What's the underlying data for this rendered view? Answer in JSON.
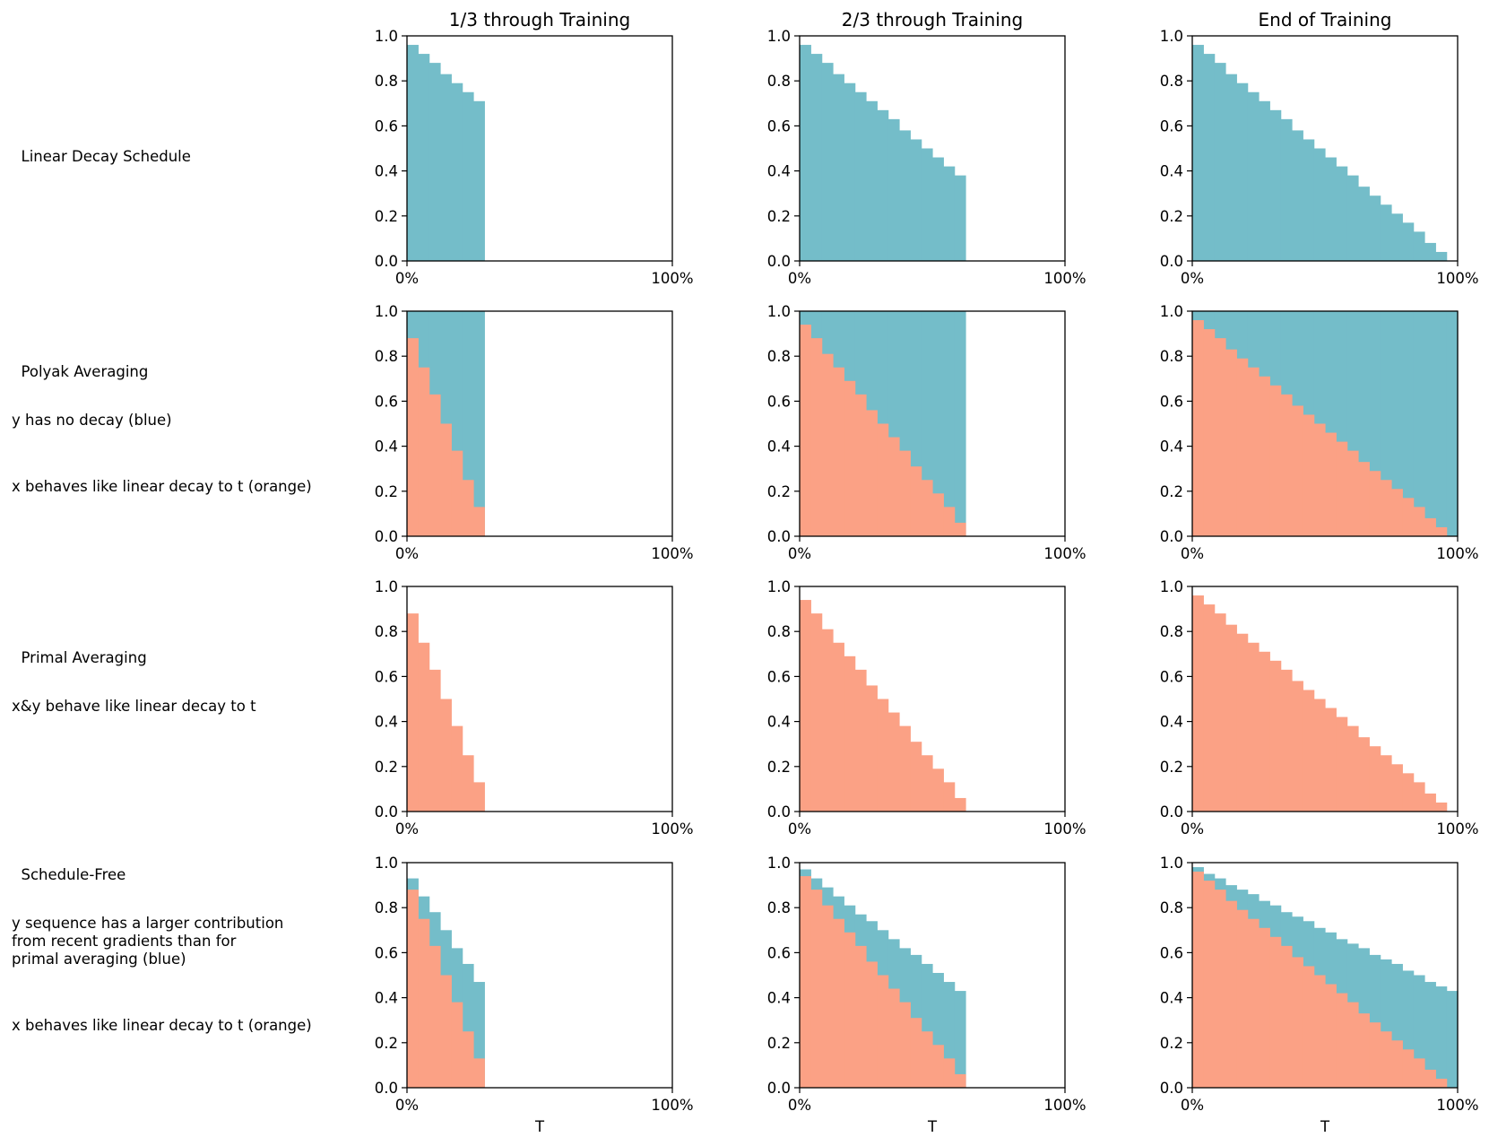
{
  "colors": {
    "blue": "#74bdc9",
    "orange": "#fba185",
    "axis": "#000000"
  },
  "column_titles": [
    "1/3 through Training",
    "2/3 through Training",
    "End of Training"
  ],
  "rows": [
    {
      "title": "Linear Decay Schedule",
      "notes": []
    },
    {
      "title": "Polyak Averaging",
      "notes": [
        "y has no decay (blue)",
        "x behaves like linear decay to t (orange)"
      ]
    },
    {
      "title": "Primal Averaging",
      "notes": [
        "x&y behave like linear decay to t"
      ]
    },
    {
      "title": "Schedule-Free",
      "notes": [
        "y sequence has a larger contribution\nfrom recent gradients than for\nprimal averaging (blue)",
        "x behaves like linear decay to t (orange)"
      ]
    }
  ],
  "axes": {
    "x_ticks": [
      "0%",
      "100%"
    ],
    "y_ticks": [
      "0.0",
      "0.2",
      "0.4",
      "0.6",
      "0.8",
      "1.0"
    ],
    "xlabel": "T"
  },
  "chart_data": [
    {
      "type": "bar",
      "row": "Linear Decay Schedule",
      "col": "1/3 through Training",
      "ylim": [
        0,
        1
      ],
      "n_total": 24,
      "series": [
        {
          "name": "linear decay",
          "color": "blue",
          "values": [
            0.96,
            0.92,
            0.88,
            0.83,
            0.79,
            0.75,
            0.71
          ]
        }
      ]
    },
    {
      "type": "bar",
      "row": "Linear Decay Schedule",
      "col": "2/3 through Training",
      "ylim": [
        0,
        1
      ],
      "n_total": 24,
      "series": [
        {
          "name": "linear decay",
          "color": "blue",
          "values": [
            0.96,
            0.92,
            0.88,
            0.83,
            0.79,
            0.75,
            0.71,
            0.67,
            0.63,
            0.58,
            0.54,
            0.5,
            0.46,
            0.42,
            0.38
          ]
        }
      ]
    },
    {
      "type": "bar",
      "row": "Linear Decay Schedule",
      "col": "End of Training",
      "ylim": [
        0,
        1
      ],
      "n_total": 24,
      "series": [
        {
          "name": "linear decay",
          "color": "blue",
          "values": [
            0.96,
            0.92,
            0.88,
            0.83,
            0.79,
            0.75,
            0.71,
            0.67,
            0.63,
            0.58,
            0.54,
            0.5,
            0.46,
            0.42,
            0.38,
            0.33,
            0.29,
            0.25,
            0.21,
            0.17,
            0.13,
            0.08,
            0.04
          ]
        }
      ]
    },
    {
      "type": "bar",
      "row": "Polyak Averaging",
      "col": "1/3 through Training",
      "ylim": [
        0,
        1
      ],
      "n_total": 24,
      "series": [
        {
          "name": "y",
          "color": "blue",
          "values": [
            1,
            1,
            1,
            1,
            1,
            1,
            1
          ]
        },
        {
          "name": "x",
          "color": "orange",
          "values": [
            0.88,
            0.75,
            0.63,
            0.5,
            0.38,
            0.25,
            0.13
          ]
        }
      ]
    },
    {
      "type": "bar",
      "row": "Polyak Averaging",
      "col": "2/3 through Training",
      "ylim": [
        0,
        1
      ],
      "n_total": 24,
      "series": [
        {
          "name": "y",
          "color": "blue",
          "values": [
            1,
            1,
            1,
            1,
            1,
            1,
            1,
            1,
            1,
            1,
            1,
            1,
            1,
            1,
            1
          ]
        },
        {
          "name": "x",
          "color": "orange",
          "values": [
            0.94,
            0.88,
            0.81,
            0.75,
            0.69,
            0.63,
            0.56,
            0.5,
            0.44,
            0.38,
            0.31,
            0.25,
            0.19,
            0.13,
            0.06
          ]
        }
      ]
    },
    {
      "type": "bar",
      "row": "Polyak Averaging",
      "col": "End of Training",
      "ylim": [
        0,
        1
      ],
      "n_total": 24,
      "series": [
        {
          "name": "y",
          "color": "blue",
          "values": [
            1,
            1,
            1,
            1,
            1,
            1,
            1,
            1,
            1,
            1,
            1,
            1,
            1,
            1,
            1,
            1,
            1,
            1,
            1,
            1,
            1,
            1,
            1,
            1
          ]
        },
        {
          "name": "x",
          "color": "orange",
          "values": [
            0.96,
            0.92,
            0.88,
            0.83,
            0.79,
            0.75,
            0.71,
            0.67,
            0.63,
            0.58,
            0.54,
            0.5,
            0.46,
            0.42,
            0.38,
            0.33,
            0.29,
            0.25,
            0.21,
            0.17,
            0.13,
            0.08,
            0.04
          ]
        }
      ]
    },
    {
      "type": "bar",
      "row": "Primal Averaging",
      "col": "1/3 through Training",
      "ylim": [
        0,
        1
      ],
      "n_total": 24,
      "series": [
        {
          "name": "x&y",
          "color": "orange",
          "values": [
            0.88,
            0.75,
            0.63,
            0.5,
            0.38,
            0.25,
            0.13
          ]
        }
      ]
    },
    {
      "type": "bar",
      "row": "Primal Averaging",
      "col": "2/3 through Training",
      "ylim": [
        0,
        1
      ],
      "n_total": 24,
      "series": [
        {
          "name": "x&y",
          "color": "orange",
          "values": [
            0.94,
            0.88,
            0.81,
            0.75,
            0.69,
            0.63,
            0.56,
            0.5,
            0.44,
            0.38,
            0.31,
            0.25,
            0.19,
            0.13,
            0.06
          ]
        }
      ]
    },
    {
      "type": "bar",
      "row": "Primal Averaging",
      "col": "End of Training",
      "ylim": [
        0,
        1
      ],
      "n_total": 24,
      "series": [
        {
          "name": "x&y",
          "color": "orange",
          "values": [
            0.96,
            0.92,
            0.88,
            0.83,
            0.79,
            0.75,
            0.71,
            0.67,
            0.63,
            0.58,
            0.54,
            0.5,
            0.46,
            0.42,
            0.38,
            0.33,
            0.29,
            0.25,
            0.21,
            0.17,
            0.13,
            0.08,
            0.04
          ]
        }
      ]
    },
    {
      "type": "bar",
      "row": "Schedule-Free",
      "col": "1/3 through Training",
      "ylim": [
        0,
        1
      ],
      "n_total": 24,
      "series": [
        {
          "name": "y",
          "color": "blue",
          "values": [
            0.93,
            0.85,
            0.78,
            0.7,
            0.62,
            0.55,
            0.47
          ]
        },
        {
          "name": "x",
          "color": "orange",
          "values": [
            0.88,
            0.75,
            0.63,
            0.5,
            0.38,
            0.25,
            0.13
          ]
        }
      ]
    },
    {
      "type": "bar",
      "row": "Schedule-Free",
      "col": "2/3 through Training",
      "ylim": [
        0,
        1
      ],
      "n_total": 24,
      "series": [
        {
          "name": "y",
          "color": "blue",
          "values": [
            0.97,
            0.93,
            0.89,
            0.85,
            0.81,
            0.77,
            0.74,
            0.7,
            0.66,
            0.62,
            0.59,
            0.55,
            0.51,
            0.47,
            0.43
          ]
        },
        {
          "name": "x",
          "color": "orange",
          "values": [
            0.94,
            0.88,
            0.81,
            0.75,
            0.69,
            0.63,
            0.56,
            0.5,
            0.44,
            0.38,
            0.31,
            0.25,
            0.19,
            0.13,
            0.06
          ]
        }
      ]
    },
    {
      "type": "bar",
      "row": "Schedule-Free",
      "col": "End of Training",
      "ylim": [
        0,
        1
      ],
      "n_total": 24,
      "series": [
        {
          "name": "y",
          "color": "blue",
          "values": [
            0.98,
            0.95,
            0.93,
            0.9,
            0.88,
            0.86,
            0.83,
            0.81,
            0.78,
            0.76,
            0.74,
            0.71,
            0.69,
            0.66,
            0.64,
            0.62,
            0.59,
            0.57,
            0.55,
            0.52,
            0.5,
            0.47,
            0.45,
            0.43
          ]
        },
        {
          "name": "x",
          "color": "orange",
          "values": [
            0.96,
            0.92,
            0.88,
            0.83,
            0.79,
            0.75,
            0.71,
            0.67,
            0.63,
            0.58,
            0.54,
            0.5,
            0.46,
            0.42,
            0.38,
            0.33,
            0.29,
            0.25,
            0.21,
            0.17,
            0.13,
            0.08,
            0.04
          ]
        }
      ]
    }
  ]
}
